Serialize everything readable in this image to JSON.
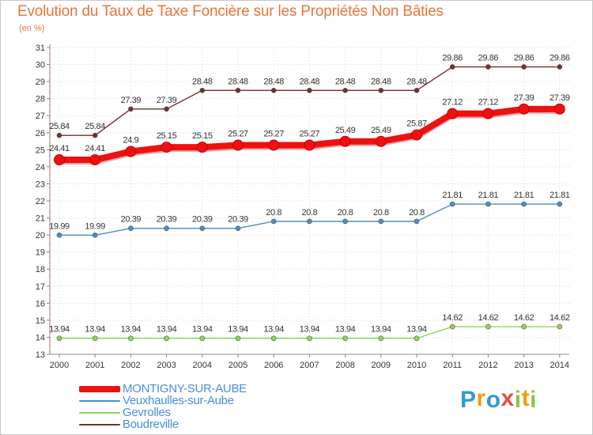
{
  "chart_data": {
    "type": "line",
    "title": "Evolution du Taux de Taxe Foncière sur les Propriétés Non Bâties",
    "ylabel": "(en %)",
    "xlabel": "",
    "ylim": [
      13,
      31
    ],
    "y_ticks": [
      13,
      14,
      15,
      16,
      17,
      18,
      19,
      20,
      21,
      22,
      23,
      24,
      25,
      26,
      27,
      28,
      29,
      30,
      31
    ],
    "x": [
      "2000",
      "2001",
      "2002",
      "2003",
      "2004",
      "2005",
      "2006",
      "2007",
      "2008",
      "2009",
      "2010",
      "2011",
      "2012",
      "2013",
      "2014"
    ],
    "series": [
      {
        "name": "Boudreville",
        "color": "#722f2f",
        "values": [
          25.84,
          25.84,
          27.39,
          27.39,
          28.48,
          28.48,
          28.48,
          28.48,
          28.48,
          28.48,
          28.48,
          29.86,
          29.86,
          29.86,
          29.86
        ]
      },
      {
        "name": "Veuxhaulles-sur-Aube",
        "color": "#4a8ccc",
        "values": [
          19.99,
          19.99,
          20.39,
          20.39,
          20.39,
          20.39,
          20.8,
          20.8,
          20.8,
          20.8,
          20.8,
          21.81,
          21.81,
          21.81,
          21.81
        ]
      },
      {
        "name": "Gevrolles",
        "color": "#8ed65c",
        "values": [
          13.94,
          13.94,
          13.94,
          13.94,
          13.94,
          13.94,
          13.94,
          13.94,
          13.94,
          13.94,
          13.94,
          14.62,
          14.62,
          14.62,
          14.62
        ]
      },
      {
        "name": "MONTIGNY-SUR-AUBE",
        "color": "#ee1111",
        "values": [
          24.41,
          24.41,
          24.9,
          25.15,
          25.15,
          25.27,
          25.27,
          25.27,
          25.49,
          25.49,
          25.87,
          27.12,
          27.12,
          27.39,
          27.39
        ]
      }
    ],
    "legend": [
      "MONTIGNY-SUR-AUBE",
      "Veuxhaulles-sur-Aube",
      "Gevrolles",
      "Boudreville"
    ],
    "legend_position": "bottom-left"
  },
  "brand": {
    "letters": [
      "P",
      "r",
      "o",
      "x",
      "i",
      "t",
      "i"
    ],
    "colors": [
      "#2f9bd8",
      "#f39c12",
      "#2f9bd8",
      "#e84c3d",
      "#8bc34a",
      "#f39c12",
      "#8bc34a"
    ]
  }
}
